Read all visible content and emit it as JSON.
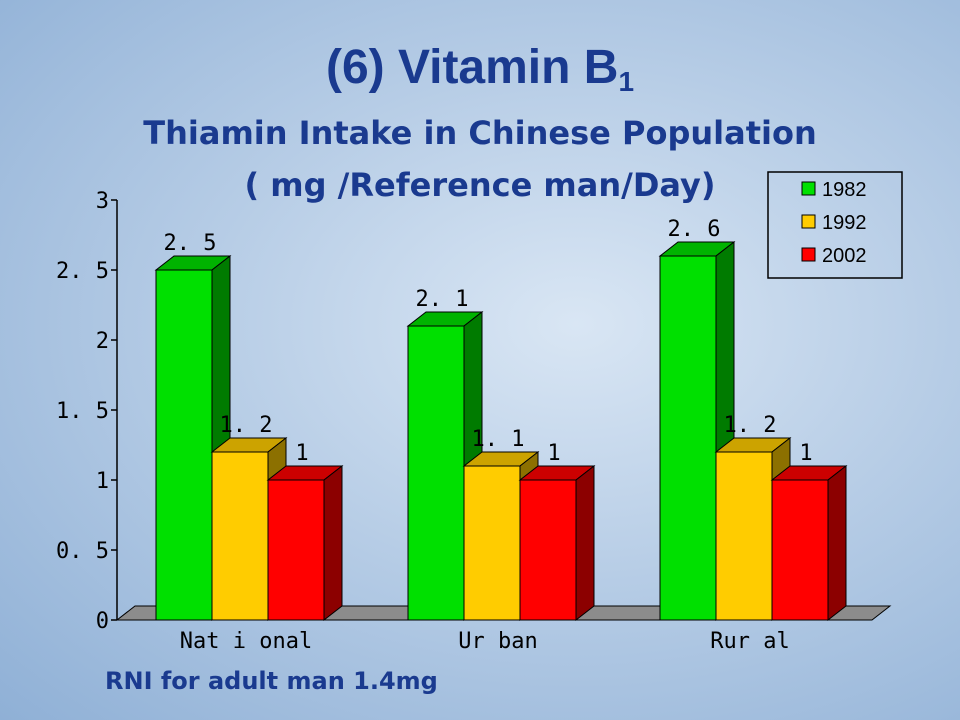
{
  "slide": {
    "title_main": "(6) Vitamin B",
    "title_sub": "1",
    "subtitle": "Thiamin Intake in Chinese Population",
    "units": "( mg  /Reference man/Day)",
    "footnote": "RNI for adult man 1.4mg"
  },
  "chart_data": {
    "type": "bar",
    "categories": [
      "Nat i onal",
      "Ur ban",
      "Rur al"
    ],
    "series": [
      {
        "name": "1982",
        "values": [
          2.5,
          2.1,
          2.6
        ],
        "labels": [
          "2. 5",
          "2. 1",
          "2. 6"
        ],
        "color": "#00e000"
      },
      {
        "name": "1992",
        "values": [
          1.2,
          1.1,
          1.2
        ],
        "labels": [
          "1. 2",
          "1. 1",
          "1. 2"
        ],
        "color": "#ffcc00"
      },
      {
        "name": "2002",
        "values": [
          1,
          1,
          1
        ],
        "labels": [
          "1",
          "1",
          "1"
        ],
        "color": "#ff0000"
      }
    ],
    "ylim": [
      0,
      3
    ],
    "yticks": [
      0,
      0.5,
      1,
      1.5,
      2,
      2.5,
      3
    ],
    "ytick_labels": [
      "0",
      "0. 5",
      "1",
      "1. 5",
      "2",
      "2. 5",
      "3"
    ],
    "legend_position": "top-right",
    "grid": false
  }
}
